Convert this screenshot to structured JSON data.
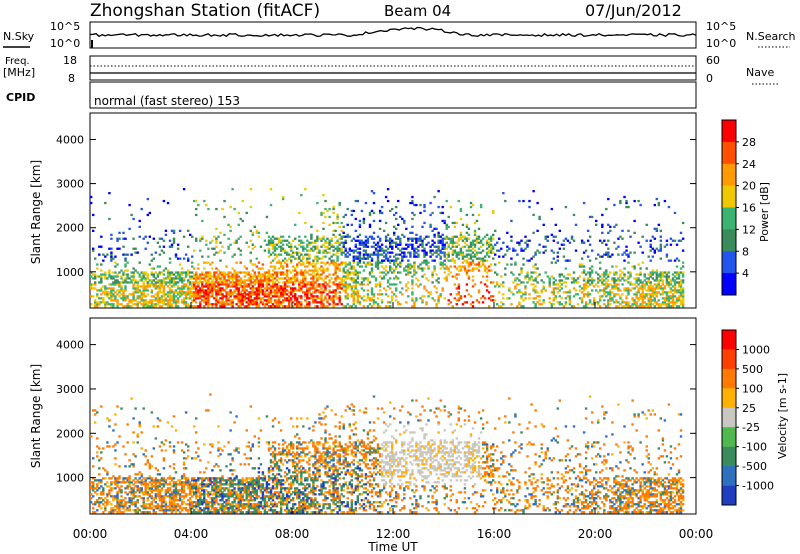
{
  "header": {
    "station": "Zhongshan Station (fitACF)",
    "beam": "Beam 04",
    "date": "07/Jun/2012"
  },
  "top_panels": {
    "nsky_label": "N.Sky",
    "nsky_ticks": [
      "10^5",
      "10^0"
    ],
    "nsearch_label": "N.Search",
    "nsearch_ticks": [
      "10^5",
      "10^0"
    ],
    "freq_label_1": "Freq.",
    "freq_label_2": "[MHz]",
    "freq_ticks": [
      "18",
      "8"
    ],
    "nave_label": "Nave",
    "nave_ticks": [
      "60",
      "0"
    ],
    "cpid_label": "CPID",
    "cpid_text": "normal (fast stereo) 153"
  },
  "chart_data": [
    {
      "type": "heatmap",
      "name": "power",
      "ylabel": "Slant Range [km]",
      "yticks": [
        1000,
        2000,
        3000,
        4000
      ],
      "ylim": [
        180,
        4600
      ],
      "xlim": [
        0,
        24
      ],
      "colorbar_label": "Power [dB]",
      "colorbar_ticks": [
        "28",
        "24",
        "20",
        "16",
        "12",
        "8",
        "4"
      ],
      "colorbar_colors": [
        "#0000ff",
        "#2255ee",
        "#3a8c5c",
        "#3cb371",
        "#f0c800",
        "#ff9a00",
        "#ff5000",
        "#ff0000"
      ]
    },
    {
      "type": "heatmap",
      "name": "velocity",
      "ylabel": "Slant Range [km]",
      "yticks": [
        1000,
        2000,
        3000,
        4000
      ],
      "ylim": [
        180,
        4600
      ],
      "xlim": [
        0,
        24
      ],
      "xticks": [
        "00:00",
        "04:00",
        "08:00",
        "12:00",
        "16:00",
        "20:00",
        "00:00"
      ],
      "xlabel": "Time UT",
      "colorbar_label": "Velocity [m s-1]",
      "colorbar_ticks": [
        "1000",
        "500",
        "100",
        "25",
        "-25",
        "-100",
        "-500",
        "-1000"
      ],
      "colorbar_colors": [
        "#1f3fc0",
        "#2e6fbf",
        "#3a8c5c",
        "#4fb84f",
        "#c8c8c0",
        "#ffb000",
        "#ff7a00",
        "#ff4000",
        "#ff0000"
      ]
    }
  ]
}
